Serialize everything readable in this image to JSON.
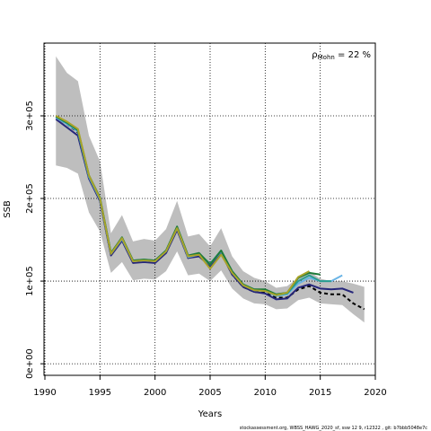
{
  "chart_data": {
    "type": "line",
    "xlabel": "Years",
    "ylabel": "SSB",
    "annotation": {
      "symbol": "ρ",
      "subscript": "Mohn",
      "text": " = 22 %"
    },
    "footer": "stockassessment.org, WBSS_HAWG_2020_sf, ssw 12 9, r12322 , git: b7bbb5048e7c",
    "x": [
      1991,
      1992,
      1993,
      1994,
      1995,
      1996,
      1997,
      1998,
      1999,
      2000,
      2001,
      2002,
      2003,
      2004,
      2005,
      2006,
      2007,
      2008,
      2009,
      2010,
      2011,
      2012,
      2013,
      2014,
      2015,
      2016,
      2017,
      2018,
      2019
    ],
    "band": {
      "color": "#bebebe",
      "upper": [
        372000,
        352000,
        342000,
        276000,
        245000,
        158000,
        180000,
        148000,
        151000,
        149000,
        163000,
        197000,
        154000,
        157000,
        142000,
        164000,
        130000,
        112000,
        104000,
        100000,
        92000,
        94000,
        104000,
        112000,
        103000,
        100000,
        100000,
        97000,
        93000
      ],
      "lower": [
        240000,
        237000,
        230000,
        183000,
        160000,
        110000,
        123000,
        101000,
        103000,
        102000,
        112000,
        136000,
        107000,
        109000,
        100000,
        113000,
        91000,
        79000,
        73000,
        72000,
        66000,
        67000,
        77000,
        80000,
        73000,
        72000,
        71000,
        60000,
        50000
      ]
    },
    "series": [
      {
        "color": "#000000",
        "dashed": true,
        "values": [
          298000,
          290000,
          280000,
          225000,
          198000,
          132000,
          150000,
          123000,
          124000,
          123000,
          135000,
          163000,
          128000,
          131000,
          118000,
          135000,
          108000,
          93000,
          87000,
          86000,
          80000,
          80000,
          90000,
          94000,
          86000,
          84000,
          84000,
          73000,
          66000
        ]
      },
      {
        "color": "#26267a",
        "values": [
          296000,
          286000,
          276000,
          224000,
          197000,
          131000,
          149000,
          122000,
          123000,
          122000,
          134000,
          162000,
          128000,
          130000,
          118000,
          134000,
          108000,
          93000,
          87000,
          85000,
          78000,
          79000,
          92000,
          96000,
          91000,
          90000,
          91000,
          86000,
          null
        ]
      },
      {
        "color": "#6ab4e6",
        "values": [
          298000,
          290000,
          281000,
          226000,
          199000,
          133000,
          151000,
          124000,
          125000,
          124000,
          136000,
          164000,
          129000,
          132000,
          120000,
          136000,
          110000,
          95000,
          89000,
          88000,
          82000,
          84000,
          97000,
          104000,
          100000,
          100000,
          107000,
          null,
          null
        ]
      },
      {
        "color": "#2a9d8f",
        "values": [
          299000,
          291000,
          282000,
          227000,
          200000,
          134000,
          152000,
          125000,
          126000,
          125000,
          137000,
          165000,
          130000,
          133000,
          121000,
          137000,
          111000,
          96000,
          90000,
          89000,
          83000,
          85000,
          100000,
          107000,
          100000,
          100000,
          null,
          null,
          null
        ]
      },
      {
        "color": "#1e7b3a",
        "values": [
          299000,
          292000,
          283000,
          228000,
          201000,
          134000,
          153000,
          125000,
          126000,
          125000,
          137000,
          166000,
          131000,
          134000,
          120000,
          137000,
          112000,
          96000,
          90000,
          90000,
          84000,
          86000,
          104000,
          110000,
          108000,
          null,
          null,
          null,
          null
        ]
      },
      {
        "color": "#a9a32a",
        "values": [
          300000,
          293000,
          284000,
          228000,
          200000,
          133000,
          152000,
          124000,
          125000,
          124000,
          136000,
          164000,
          130000,
          132000,
          115000,
          132000,
          110000,
          95000,
          89000,
          88000,
          83000,
          86000,
          105000,
          112000,
          null,
          null,
          null,
          null,
          null
        ]
      }
    ],
    "xlim": [
      1990,
      2020
    ],
    "ylim": [
      -14000,
      388000
    ],
    "xticks": [
      1990,
      1995,
      2000,
      2005,
      2010,
      2015,
      2020
    ],
    "yticks": [
      {
        "value": 0,
        "label": "0e+00"
      },
      {
        "value": 100000,
        "label": "1e+05"
      },
      {
        "value": 200000,
        "label": "2e+05"
      },
      {
        "value": 300000,
        "label": "3e+05"
      }
    ],
    "grid": true
  }
}
